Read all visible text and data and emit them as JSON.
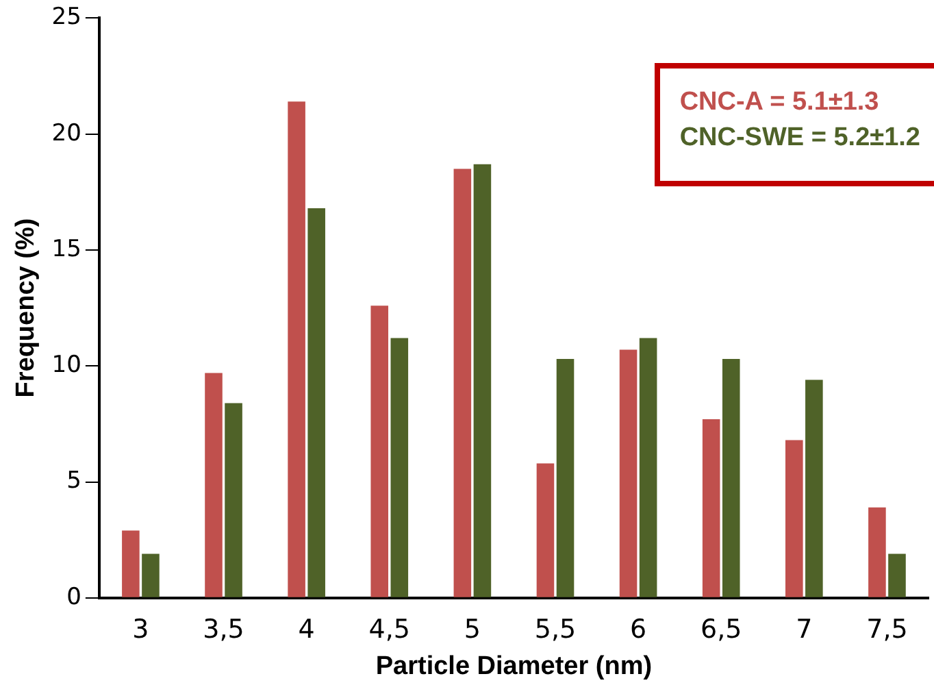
{
  "chart_data": {
    "type": "bar",
    "xlabel": "Particle Diameter (nm)",
    "ylabel": "Frequency (%)",
    "categories": [
      "3",
      "3,5",
      "4",
      "4,5",
      "5",
      "5,5",
      "6",
      "6,5",
      "7",
      "7,5"
    ],
    "series": [
      {
        "name": "CNC-A = 5.1±1.3",
        "color": "#c0504d",
        "values": [
          2.9,
          9.7,
          21.4,
          12.6,
          18.5,
          5.8,
          10.7,
          7.7,
          6.8,
          3.9
        ]
      },
      {
        "name": "CNC-SWE = 5.2±1.2",
        "color": "#4f6228",
        "values": [
          1.9,
          8.4,
          16.8,
          11.2,
          18.7,
          10.3,
          11.2,
          10.3,
          9.4,
          1.9
        ]
      }
    ],
    "ylim": [
      0,
      25
    ],
    "yticks": [
      0,
      5,
      10,
      15,
      20,
      25
    ],
    "grid": false,
    "legend": "top right"
  }
}
